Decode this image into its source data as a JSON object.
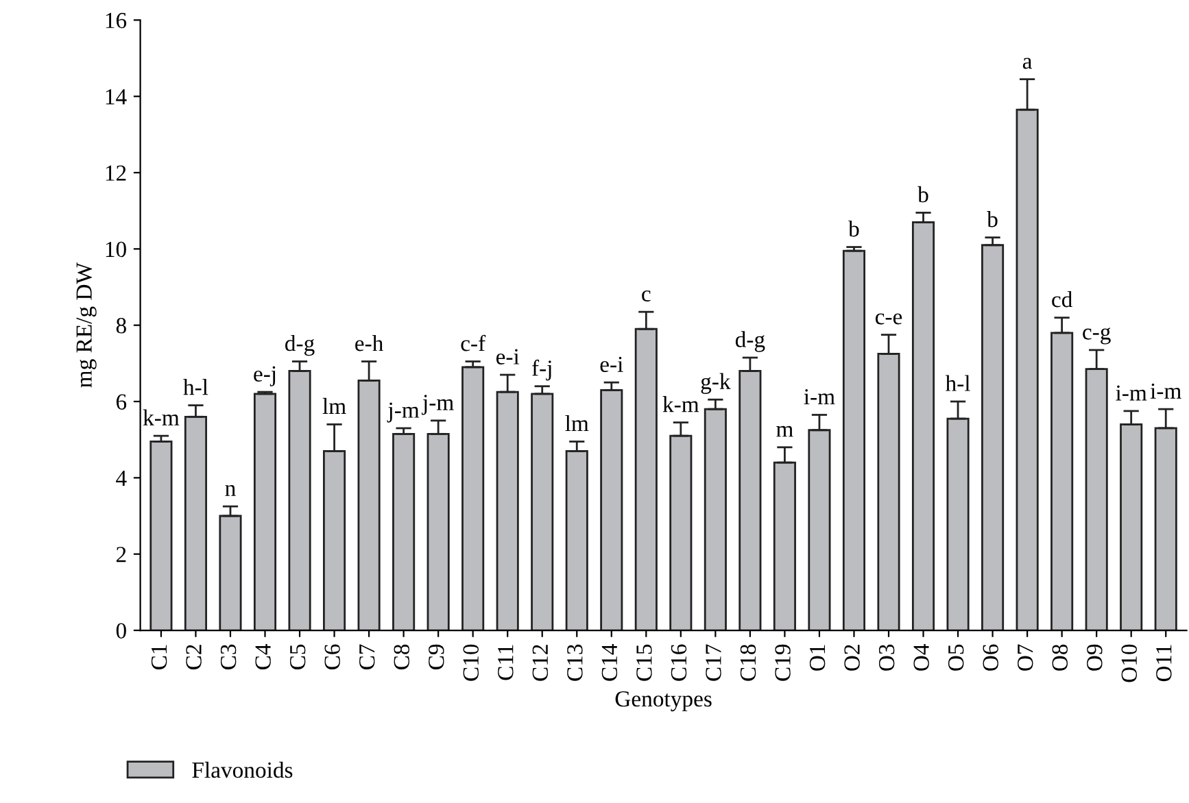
{
  "chart_data": {
    "type": "bar",
    "xlabel": "Genotypes",
    "ylabel": "mg RE/g DW",
    "categories": [
      "C1",
      "C2",
      "C3",
      "C4",
      "C5",
      "C6",
      "C7",
      "C8",
      "C9",
      "C10",
      "C11",
      "C12",
      "C13",
      "C14",
      "C15",
      "C16",
      "C17",
      "C18",
      "C19",
      "O1",
      "O2",
      "O3",
      "O4",
      "O5",
      "O6",
      "O7",
      "O8",
      "O9",
      "O10",
      "O11"
    ],
    "series": [
      {
        "name": "Flavonoids",
        "color": "#bcbdc1",
        "values": [
          4.95,
          5.6,
          3.0,
          6.2,
          6.8,
          4.7,
          6.55,
          5.15,
          5.15,
          6.9,
          6.25,
          6.2,
          4.7,
          6.3,
          7.9,
          5.1,
          5.8,
          6.8,
          4.4,
          5.25,
          9.95,
          7.25,
          10.7,
          5.55,
          10.1,
          13.65,
          7.8,
          6.85,
          5.4,
          5.3
        ],
        "errors": [
          [
            4.95,
            5.1
          ],
          [
            5.6,
            5.9
          ],
          [
            3.0,
            3.25
          ],
          [
            6.2,
            6.25
          ],
          [
            6.8,
            7.05
          ],
          [
            4.7,
            5.4
          ],
          [
            6.55,
            7.05
          ],
          [
            5.15,
            5.3
          ],
          [
            5.15,
            5.5
          ],
          [
            6.9,
            7.05
          ],
          [
            6.25,
            6.7
          ],
          [
            6.2,
            6.4
          ],
          [
            4.7,
            4.95
          ],
          [
            6.3,
            6.5
          ],
          [
            7.9,
            8.35
          ],
          [
            5.1,
            5.45
          ],
          [
            5.8,
            6.05
          ],
          [
            6.8,
            7.15
          ],
          [
            4.4,
            4.8
          ],
          [
            5.25,
            5.65
          ],
          [
            9.95,
            10.05
          ],
          [
            7.25,
            7.75
          ],
          [
            10.7,
            10.95
          ],
          [
            5.55,
            6.0
          ],
          [
            10.1,
            10.3
          ],
          [
            13.65,
            14.45
          ],
          [
            7.8,
            8.2
          ],
          [
            6.85,
            7.35
          ],
          [
            5.4,
            5.75
          ],
          [
            5.3,
            5.8
          ]
        ]
      }
    ],
    "annotations": [
      {
        "text": "k-m",
        "x": "C1",
        "y": 5.1
      },
      {
        "text": "h-l",
        "x": "C2",
        "y": 5.9
      },
      {
        "text": "n",
        "x": "C3",
        "y": 3.25
      },
      {
        "text": "e-j",
        "x": "C4",
        "y": 6.25
      },
      {
        "text": "d-g",
        "x": "C5",
        "y": 7.05
      },
      {
        "text": "lm",
        "x": "C6",
        "y": 5.4
      },
      {
        "text": "e-h",
        "x": "C7",
        "y": 7.05
      },
      {
        "text": "j-m",
        "x": "C8",
        "y": 5.3
      },
      {
        "text": "j-m",
        "x": "C9",
        "y": 5.5
      },
      {
        "text": "c-f",
        "x": "C10",
        "y": 7.05
      },
      {
        "text": "e-i",
        "x": "C11",
        "y": 6.7
      },
      {
        "text": "f-j",
        "x": "C12",
        "y": 6.4
      },
      {
        "text": "lm",
        "x": "C13",
        "y": 4.95
      },
      {
        "text": "e-i",
        "x": "C14",
        "y": 6.5
      },
      {
        "text": "c",
        "x": "C15",
        "y": 8.35
      },
      {
        "text": "k-m",
        "x": "C16",
        "y": 5.45
      },
      {
        "text": "g-k",
        "x": "C17",
        "y": 6.05
      },
      {
        "text": "d-g",
        "x": "C18",
        "y": 7.15
      },
      {
        "text": "m",
        "x": "C19",
        "y": 4.8
      },
      {
        "text": "i-m",
        "x": "O1",
        "y": 5.65
      },
      {
        "text": "b",
        "x": "O2",
        "y": 10.05
      },
      {
        "text": "c-e",
        "x": "O3",
        "y": 7.75
      },
      {
        "text": "b",
        "x": "O4",
        "y": 10.95
      },
      {
        "text": "h-l",
        "x": "O5",
        "y": 6.0
      },
      {
        "text": "b",
        "x": "O6",
        "y": 10.3
      },
      {
        "text": "a",
        "x": "O7",
        "y": 14.45
      },
      {
        "text": "cd",
        "x": "O8",
        "y": 8.2
      },
      {
        "text": "c-g",
        "x": "O9",
        "y": 7.35
      },
      {
        "text": "i-m",
        "x": "O10",
        "y": 5.75
      },
      {
        "text": "i-m",
        "x": "O11",
        "y": 5.8
      }
    ],
    "ylim": [
      0,
      16
    ],
    "yticks": [
      0,
      2,
      4,
      6,
      8,
      10,
      12,
      14,
      16
    ],
    "legend": "bottom left",
    "grid": false
  }
}
